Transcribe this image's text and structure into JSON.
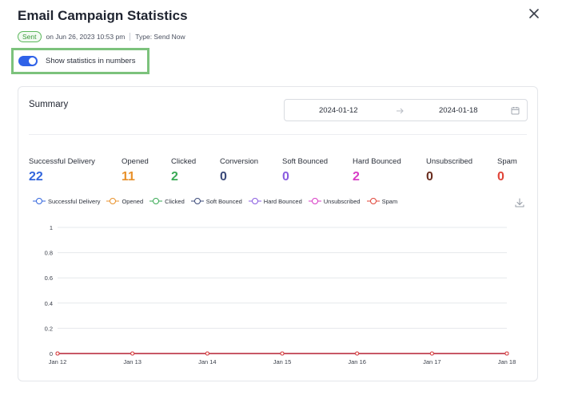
{
  "header": {
    "title": "Email Campaign Statistics",
    "status_badge": "Sent",
    "sent_on": "on Jun 26, 2023 10:53 pm",
    "type": "Type: Send Now"
  },
  "toggle": {
    "label": "Show statistics in numbers",
    "checked": true,
    "color": "#2f62e8"
  },
  "summary": {
    "title": "Summary",
    "date_from": "2024-01-12",
    "date_to": "2024-01-18",
    "arrow_icon": "arrow-right-icon",
    "calendar_icon": "calendar-icon"
  },
  "stats": [
    {
      "label": "Successful Delivery",
      "value": "22",
      "color": "#3366dd"
    },
    {
      "label": "Opened",
      "value": "11",
      "color": "#e8912b"
    },
    {
      "label": "Clicked",
      "value": "2",
      "color": "#3aaa55"
    },
    {
      "label": "Conversion",
      "value": "0",
      "color": "#3b4a7a"
    },
    {
      "label": "Soft Bounced",
      "value": "0",
      "color": "#8a5ce0"
    },
    {
      "label": "Hard Bounced",
      "value": "2",
      "color": "#d83cc6"
    },
    {
      "label": "Unsubscribed",
      "value": "0",
      "color": "#6a2e20"
    },
    {
      "label": "Spam",
      "value": "0",
      "color": "#e04438"
    }
  ],
  "legend": [
    {
      "label": "Successful Delivery",
      "color": "#3366dd"
    },
    {
      "label": "Opened",
      "color": "#e8912b"
    },
    {
      "label": "Clicked",
      "color": "#3aaa55"
    },
    {
      "label": "Soft Bounced",
      "color": "#3b4a7a"
    },
    {
      "label": "Hard Bounced",
      "color": "#8a5ce0"
    },
    {
      "label": "Unsubscribed",
      "color": "#d83cc6"
    },
    {
      "label": "Spam",
      "color": "#e04438"
    }
  ],
  "icons": {
    "close": "close-icon",
    "download": "download-icon"
  },
  "chart_data": {
    "type": "line",
    "x": [
      "Jan 12",
      "Jan 13",
      "Jan 14",
      "Jan 15",
      "Jan 16",
      "Jan 17",
      "Jan 18"
    ],
    "ylim": [
      0,
      1
    ],
    "yticks": [
      "0",
      "0.2",
      "0.4",
      "0.6",
      "0.8",
      "1"
    ],
    "grid": true,
    "legend_position": "top-left",
    "series": [
      {
        "name": "Successful Delivery",
        "values": [
          0,
          0,
          0,
          0,
          0,
          0,
          0
        ],
        "color": "#3366dd"
      },
      {
        "name": "Opened",
        "values": [
          0,
          0,
          0,
          0,
          0,
          0,
          0
        ],
        "color": "#e8912b"
      },
      {
        "name": "Clicked",
        "values": [
          0,
          0,
          0,
          0,
          0,
          0,
          0
        ],
        "color": "#3aaa55"
      },
      {
        "name": "Soft Bounced",
        "values": [
          0,
          0,
          0,
          0,
          0,
          0,
          0
        ],
        "color": "#3b4a7a"
      },
      {
        "name": "Hard Bounced",
        "values": [
          0,
          0,
          0,
          0,
          0,
          0,
          0
        ],
        "color": "#8a5ce0"
      },
      {
        "name": "Unsubscribed",
        "values": [
          0,
          0,
          0,
          0,
          0,
          0,
          0
        ],
        "color": "#d83cc6"
      },
      {
        "name": "Spam",
        "values": [
          0,
          0,
          0,
          0,
          0,
          0,
          0
        ],
        "color": "#e04438"
      }
    ]
  }
}
